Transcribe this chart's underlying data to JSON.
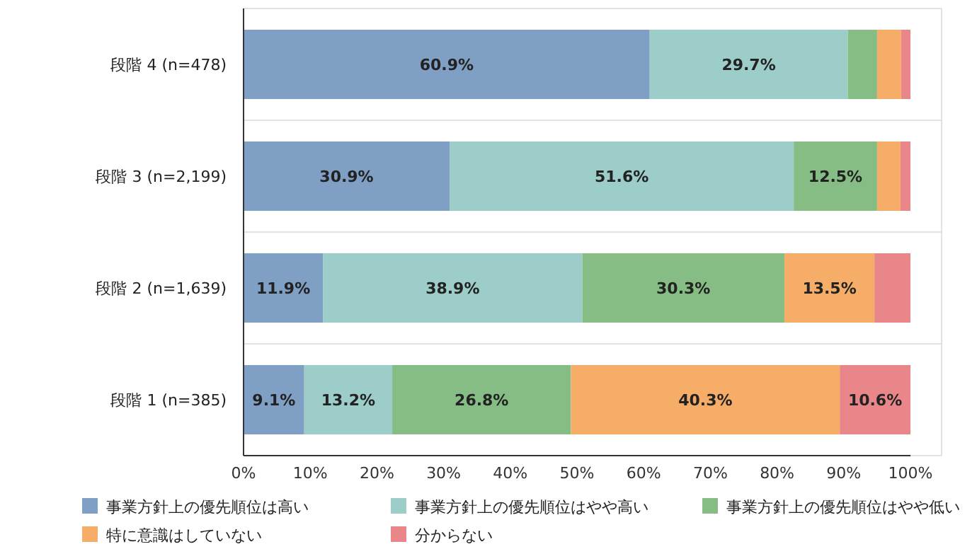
{
  "chart_data": {
    "type": "bar",
    "orientation": "horizontal",
    "stacked": true,
    "categories": [
      "段階 4 (n=478)",
      "段階 3 (n=2,199)",
      "段階 2 (n=1,639)",
      "段階 1 (n=385)"
    ],
    "series": [
      {
        "name": "事業方針上の優先順位は高い",
        "color": "#7f9fc4",
        "values": [
          60.9,
          30.9,
          11.9,
          9.1
        ],
        "value_labels": [
          "60.9%",
          "30.9%",
          "11.9%",
          "9.1%"
        ]
      },
      {
        "name": "事業方針上の優先順位はやや高い",
        "color": "#9ccdc8",
        "values": [
          29.7,
          51.6,
          38.9,
          13.2
        ],
        "value_labels": [
          "29.7%",
          "51.6%",
          "38.9%",
          "13.2%"
        ]
      },
      {
        "name": "事業方針上の優先順位はやや低い",
        "color": "#85bd84",
        "values": [
          4.4,
          12.5,
          30.3,
          26.8
        ],
        "value_labels": [
          null,
          "12.5%",
          "30.3%",
          "26.8%"
        ]
      },
      {
        "name": "特に意識はしていない",
        "color": "#f5ad67",
        "values": [
          3.6,
          3.5,
          13.5,
          40.3
        ],
        "value_labels": [
          null,
          null,
          "13.5%",
          "40.3%"
        ]
      },
      {
        "name": "分からない",
        "color": "#e8868a",
        "values": [
          1.4,
          1.5,
          5.4,
          10.6
        ],
        "value_labels": [
          null,
          null,
          null,
          "10.6%"
        ]
      }
    ],
    "xlim": [
      0,
      100
    ],
    "xticks": [
      {
        "value": 0,
        "label": "0%"
      },
      {
        "value": 10,
        "label": "10%"
      },
      {
        "value": 20,
        "label": "20%"
      },
      {
        "value": 30,
        "label": "30%"
      },
      {
        "value": 40,
        "label": "40%"
      },
      {
        "value": 50,
        "label": "50%"
      },
      {
        "value": 60,
        "label": "60%"
      },
      {
        "value": 70,
        "label": "70%"
      },
      {
        "value": 80,
        "label": "80%"
      },
      {
        "value": 90,
        "label": "90%"
      },
      {
        "value": 100,
        "label": "100%"
      }
    ],
    "legend": "bottom",
    "grid": false
  }
}
